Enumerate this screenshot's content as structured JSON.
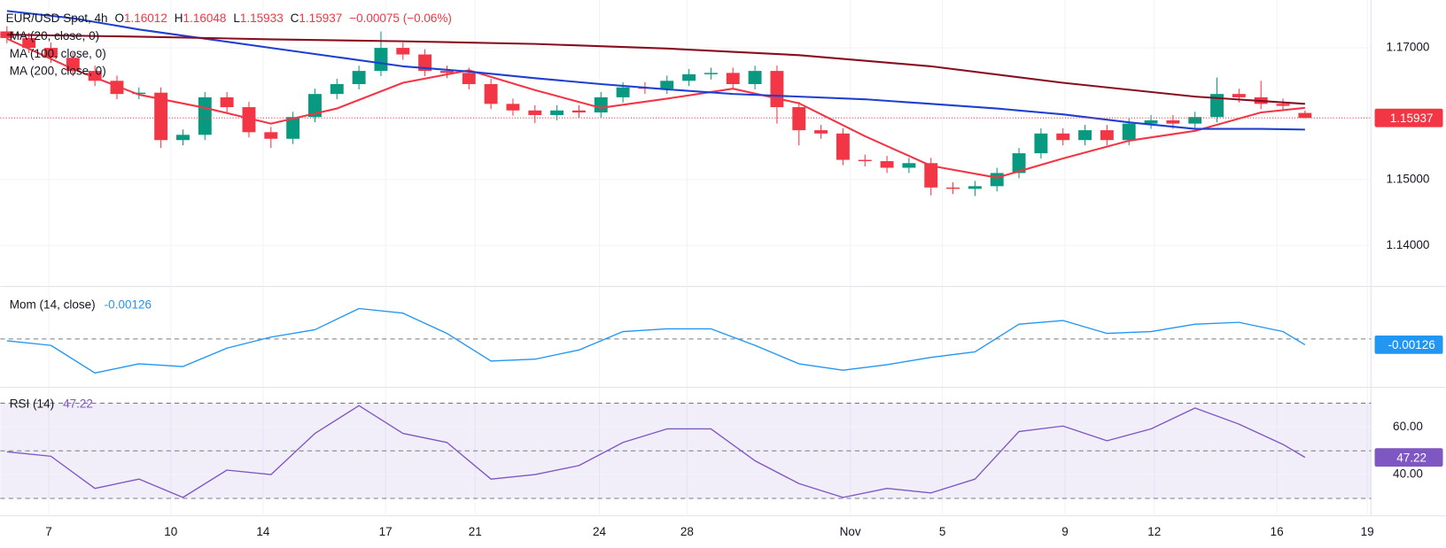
{
  "chart_data": [
    {
      "type": "candlestick",
      "title": "EUR/USD Spot, 4h",
      "ohlc_labels": [
        "O",
        "H",
        "L",
        "C"
      ],
      "change": "−0.00075 (−0.06%)",
      "up_color": "#089981",
      "down_color": "#f23645",
      "x": [
        0,
        1,
        2,
        3,
        4,
        5,
        6,
        7,
        8,
        9,
        10,
        11,
        12,
        13,
        14,
        15,
        16,
        17,
        18,
        19,
        20,
        21,
        22,
        23,
        24,
        25,
        26,
        27,
        28,
        29,
        30,
        31,
        32,
        33,
        34,
        35,
        36,
        37,
        38,
        39,
        40,
        41,
        42,
        43,
        44,
        45,
        46,
        47,
        48,
        49,
        50,
        51,
        52,
        53,
        54,
        55,
        56,
        57,
        58,
        59
      ],
      "open": [
        1.1725,
        1.1715,
        1.17,
        1.1685,
        1.1665,
        1.165,
        1.163,
        1.1632,
        1.156,
        1.1568,
        1.1625,
        1.161,
        1.1572,
        1.1562,
        1.1595,
        1.163,
        1.1645,
        1.1665,
        1.17,
        1.169,
        1.1665,
        1.1662,
        1.1645,
        1.1615,
        1.1605,
        1.1598,
        1.1605,
        1.1602,
        1.1625,
        1.164,
        1.1638,
        1.165,
        1.166,
        1.1662,
        1.1645,
        1.1665,
        1.161,
        1.1575,
        1.157,
        1.153,
        1.1528,
        1.1518,
        1.1525,
        1.1488,
        1.1486,
        1.149,
        1.151,
        1.154,
        1.157,
        1.156,
        1.1575,
        1.156,
        1.1585,
        1.159,
        1.1585,
        1.1595,
        1.163,
        1.1625,
        1.1615,
        1.16012
      ],
      "high": [
        1.1733,
        1.1723,
        1.1708,
        1.1693,
        1.1673,
        1.1658,
        1.164,
        1.164,
        1.1576,
        1.1633,
        1.1633,
        1.1618,
        1.158,
        1.1603,
        1.1638,
        1.1653,
        1.1673,
        1.1725,
        1.1708,
        1.1698,
        1.1673,
        1.167,
        1.1653,
        1.1623,
        1.1613,
        1.1613,
        1.1613,
        1.1633,
        1.1648,
        1.1648,
        1.1658,
        1.1668,
        1.167,
        1.167,
        1.1673,
        1.1673,
        1.1618,
        1.1583,
        1.1578,
        1.1538,
        1.1536,
        1.1533,
        1.1533,
        1.1496,
        1.1498,
        1.1518,
        1.1548,
        1.1578,
        1.1578,
        1.1583,
        1.1583,
        1.1593,
        1.1598,
        1.1598,
        1.1603,
        1.1655,
        1.1638,
        1.165,
        1.1623,
        1.16048
      ],
      "low": [
        1.1707,
        1.1692,
        1.1677,
        1.1657,
        1.1642,
        1.1622,
        1.1622,
        1.1548,
        1.1552,
        1.156,
        1.1602,
        1.1564,
        1.1548,
        1.1554,
        1.1587,
        1.1622,
        1.1637,
        1.1657,
        1.1682,
        1.1657,
        1.1654,
        1.1637,
        1.1607,
        1.1597,
        1.1586,
        1.159,
        1.1594,
        1.1594,
        1.1617,
        1.163,
        1.163,
        1.1642,
        1.1652,
        1.1637,
        1.1637,
        1.1585,
        1.1552,
        1.1562,
        1.1522,
        1.152,
        1.151,
        1.151,
        1.1476,
        1.1478,
        1.1475,
        1.1482,
        1.1502,
        1.1532,
        1.1552,
        1.1552,
        1.1552,
        1.1552,
        1.1577,
        1.1577,
        1.1577,
        1.1587,
        1.1617,
        1.1607,
        1.1604,
        1.15933
      ],
      "close": [
        1.1715,
        1.17,
        1.1685,
        1.1665,
        1.165,
        1.163,
        1.1632,
        1.156,
        1.1568,
        1.1625,
        1.161,
        1.1572,
        1.1562,
        1.1595,
        1.163,
        1.1645,
        1.1665,
        1.17,
        1.169,
        1.1665,
        1.1662,
        1.1645,
        1.1615,
        1.1605,
        1.1598,
        1.1605,
        1.1602,
        1.1625,
        1.164,
        1.1638,
        1.165,
        1.166,
        1.1662,
        1.1645,
        1.1665,
        1.161,
        1.1575,
        1.157,
        1.153,
        1.1528,
        1.1518,
        1.1525,
        1.1488,
        1.1486,
        1.149,
        1.151,
        1.154,
        1.157,
        1.156,
        1.1575,
        1.156,
        1.1585,
        1.159,
        1.1585,
        1.1595,
        1.163,
        1.1625,
        1.1615,
        1.1612,
        1.15937
      ],
      "series": [
        {
          "name": "MA (20, close, 0)",
          "color": "#f23645",
          "x": [
            0,
            3,
            6,
            9,
            12,
            15,
            18,
            21,
            24,
            27,
            30,
            33,
            36,
            39,
            42,
            45,
            48,
            51,
            54,
            57,
            59
          ],
          "values": [
            1.1714,
            1.1668,
            1.1629,
            1.1609,
            1.1585,
            1.1608,
            1.1647,
            1.1666,
            1.1636,
            1.1609,
            1.1623,
            1.1638,
            1.1616,
            1.1566,
            1.1521,
            1.1503,
            1.1532,
            1.1559,
            1.1574,
            1.1602,
            1.1609
          ]
        },
        {
          "name": "MA (100, close, 0)",
          "color": "#1e3fd0",
          "x": [
            0,
            3,
            6,
            9,
            12,
            15,
            18,
            21,
            24,
            27,
            30,
            33,
            36,
            39,
            42,
            45,
            48,
            51,
            54,
            57,
            59
          ],
          "values": [
            1.1756,
            1.1745,
            1.1728,
            1.1714,
            1.17,
            1.1686,
            1.1672,
            1.1664,
            1.1654,
            1.1645,
            1.1637,
            1.163,
            1.1626,
            1.1622,
            1.1615,
            1.1608,
            1.1599,
            1.1587,
            1.1577,
            1.1577,
            1.1576
          ]
        },
        {
          "name": "MA (200, close, 0)",
          "color": "#880e1f",
          "x": [
            0,
            6,
            12,
            18,
            24,
            30,
            36,
            42,
            48,
            54,
            59
          ],
          "values": [
            1.172,
            1.1717,
            1.1713,
            1.171,
            1.1706,
            1.1699,
            1.1689,
            1.1672,
            1.1647,
            1.1626,
            1.1615
          ]
        }
      ],
      "ylim": [
        1.13392,
        1.17727
      ],
      "yticks": [
        {
          "value": 1.14,
          "label": "1.14000"
        },
        {
          "value": 1.15,
          "label": "1.15000"
        },
        {
          "value": 1.17,
          "label": "1.17000"
        }
      ],
      "xlim": [
        -0.3,
        62
      ],
      "xticks": [
        {
          "value": 1.9,
          "label": "7"
        },
        {
          "value": 7.45,
          "label": "10"
        },
        {
          "value": 11.64,
          "label": "14"
        },
        {
          "value": 17.21,
          "label": "17"
        },
        {
          "value": 21.28,
          "label": "21"
        },
        {
          "value": 26.93,
          "label": "24"
        },
        {
          "value": 30.91,
          "label": "28"
        },
        {
          "value": 38.33,
          "label": "Nov"
        },
        {
          "value": 42.52,
          "label": "5"
        },
        {
          "value": 48.09,
          "label": "9"
        },
        {
          "value": 52.15,
          "label": "12"
        },
        {
          "value": 57.72,
          "label": "16"
        },
        {
          "value": 61.83,
          "label": "19"
        }
      ]
    },
    {
      "type": "line",
      "title": "Mom (14, close)",
      "x": [
        0,
        2,
        4,
        6,
        8,
        10,
        12,
        14,
        16,
        18,
        20,
        22,
        24,
        26,
        28,
        30,
        32,
        34,
        36,
        38,
        40,
        42,
        44,
        46,
        48,
        50,
        52,
        54,
        56,
        58,
        59
      ],
      "series": [
        {
          "color": "#2196f3",
          "values": [
            -0.0004,
            -0.0014,
            -0.0074,
            -0.0054,
            -0.006,
            -0.002,
            0.0004,
            0.002,
            0.0066,
            0.0056,
            0.0012,
            -0.0048,
            -0.0044,
            -0.0024,
            0.0016,
            0.0022,
            0.0022,
            -0.0014,
            -0.0054,
            -0.0068,
            -0.0056,
            -0.004,
            -0.0028,
            0.0032,
            0.004,
            0.0012,
            0.0016,
            0.0032,
            0.0036,
            0.0016,
            -0.00126
          ]
        }
      ],
      "ylim": [
        -0.0104,
        0.0112
      ],
      "zero_line": 0
    },
    {
      "type": "line",
      "title": "RSI (14)",
      "x": [
        0,
        2,
        4,
        6,
        8,
        10,
        12,
        14,
        16,
        18,
        20,
        22,
        24,
        26,
        28,
        30,
        32,
        34,
        36,
        38,
        40,
        42,
        44,
        46,
        48,
        50,
        52,
        54,
        56,
        58,
        59
      ],
      "series": [
        {
          "color": "#7e57c2",
          "values": [
            49.6,
            47.7,
            34.2,
            38.1,
            30.4,
            41.9,
            40,
            57.3,
            69,
            57.3,
            53.5,
            38.1,
            40,
            43.8,
            53.5,
            59.2,
            59.2,
            45.8,
            36.2,
            30.4,
            34.2,
            32.3,
            38.1,
            58.1,
            60.4,
            54.2,
            59.2,
            68,
            61.2,
            52.7,
            47.22
          ]
        }
      ],
      "ylim": [
        22.7,
        76.5
      ],
      "yticks": [
        {
          "value": 60,
          "label": "60.00"
        },
        {
          "value": 40,
          "label": "40.00"
        }
      ],
      "band": [
        30,
        70
      ],
      "midline": 50
    }
  ]
}
